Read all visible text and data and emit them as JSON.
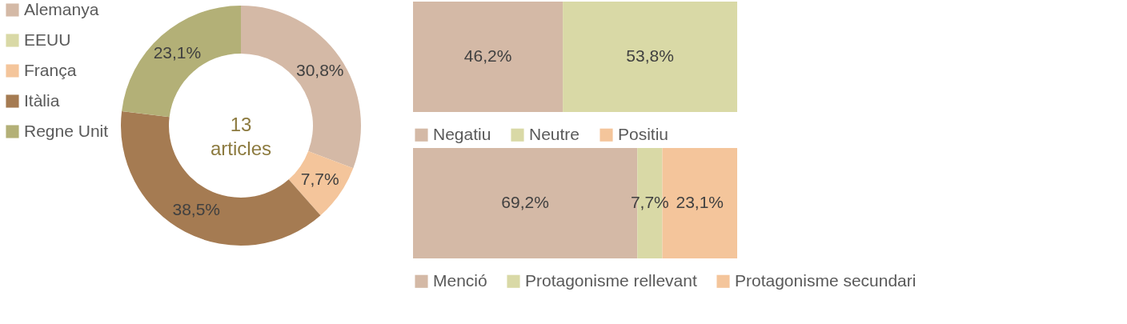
{
  "chart_data": [
    {
      "type": "donut",
      "categories": [
        "Alemanya",
        "EEUU",
        "França",
        "Itàlia",
        "Regne Unit"
      ],
      "values": [
        30.8,
        0,
        7.7,
        38.5,
        23.1
      ],
      "colors": [
        "#d4b9a6",
        "#d9d9a6",
        "#f4c59b",
        "#a57b52",
        "#b3b077"
      ],
      "value_labels": [
        "30,8%",
        null,
        "7,7%",
        "38,5%",
        "23,1%"
      ],
      "annotations": [
        "13 articles"
      ],
      "legend": "left"
    },
    {
      "type": "bar",
      "orientation": "horizontal",
      "stacked": true,
      "categories": [
        null
      ],
      "xlim": [
        0,
        100
      ],
      "legend": "bottom",
      "series": [
        {
          "name": "Negatiu",
          "color": "#d4b9a6",
          "values": [
            46.2
          ],
          "value_labels": [
            "46,2%"
          ]
        },
        {
          "name": "Neutre",
          "color": "#d9d9a6",
          "values": [
            53.8
          ],
          "value_labels": [
            "53,8%"
          ]
        },
        {
          "name": "Positiu",
          "color": "#f4c59b",
          "values": [
            0
          ],
          "value_labels": [
            null
          ]
        }
      ]
    },
    {
      "type": "bar",
      "orientation": "horizontal",
      "stacked": true,
      "categories": [
        null
      ],
      "xlim": [
        0,
        100
      ],
      "legend": "bottom",
      "series": [
        {
          "name": "Menció",
          "color": "#d4b9a6",
          "values": [
            69.2
          ],
          "value_labels": [
            "69,2%"
          ]
        },
        {
          "name": "Protagonisme rellevant",
          "color": "#d9d9a6",
          "values": [
            7.7
          ],
          "value_labels": [
            "7,7%"
          ]
        },
        {
          "name": "Protagonisme secundari",
          "color": "#f4c59b",
          "values": [
            23.1
          ],
          "value_labels": [
            "23,1%"
          ]
        }
      ]
    }
  ]
}
